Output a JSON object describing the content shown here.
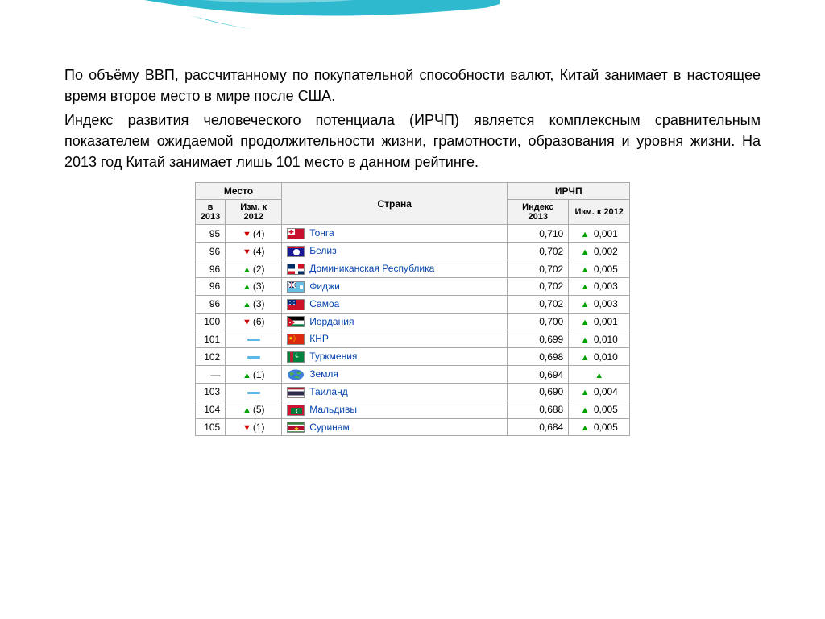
{
  "decoration": {
    "wave_color_outer": "#7bd4e0",
    "wave_color_mid": "#2fb9cf",
    "wave_color_inner": "#ffffff"
  },
  "paragraphs": {
    "p1": "По объёму ВВП, рассчитанному по покупательной способности валют, Китай занимает в настоящее время второе место в мире после США.",
    "p2": "Индекс развития человеческого потенциала (ИРЧП) является комплексным сравнительным показателем ожидаемой продолжительности жизни, грамотности, образования и уровня жизни. На 2013 год Китай занимает лишь 101 место в данном рейтинге."
  },
  "table": {
    "header_border": "#aaaaaa",
    "header_bg": "#f2f2f2",
    "link_color": "#0645ad",
    "up_color": "#00a000",
    "down_color": "#cc0000",
    "dash_color": "#5bb8e8",
    "group_place": "Место",
    "group_country": "Страна",
    "group_hdi": "ИРЧП",
    "col_rank": "в 2013",
    "col_rank_change": "Изм. к 2012",
    "col_index": "Индекс 2013",
    "col_index_change": "Изм. к 2012",
    "rows": [
      {
        "rank": "95",
        "rank_dir": "down",
        "rank_delta": "(4)",
        "flag": "tonga",
        "country": "Тонга",
        "index": "0,710",
        "idx_dir": "up",
        "idx_delta": "0,001"
      },
      {
        "rank": "96",
        "rank_dir": "down",
        "rank_delta": "(4)",
        "flag": "belize",
        "country": "Белиз",
        "index": "0,702",
        "idx_dir": "up",
        "idx_delta": "0,002"
      },
      {
        "rank": "96",
        "rank_dir": "up",
        "rank_delta": "(2)",
        "flag": "dominican",
        "country": "Доминиканская Республика",
        "index": "0,702",
        "idx_dir": "up",
        "idx_delta": "0,005"
      },
      {
        "rank": "96",
        "rank_dir": "up",
        "rank_delta": "(3)",
        "flag": "fiji",
        "country": "Фиджи",
        "index": "0,702",
        "idx_dir": "up",
        "idx_delta": "0,003"
      },
      {
        "rank": "96",
        "rank_dir": "up",
        "rank_delta": "(3)",
        "flag": "samoa",
        "country": "Самоа",
        "index": "0,702",
        "idx_dir": "up",
        "idx_delta": "0,003"
      },
      {
        "rank": "100",
        "rank_dir": "down",
        "rank_delta": "(6)",
        "flag": "jordan",
        "country": "Иордания",
        "index": "0,700",
        "idx_dir": "up",
        "idx_delta": "0,001"
      },
      {
        "rank": "101",
        "rank_dir": "dash",
        "rank_delta": "",
        "flag": "china",
        "country": "КНР",
        "index": "0,699",
        "idx_dir": "up",
        "idx_delta": "0,010"
      },
      {
        "rank": "102",
        "rank_dir": "dash",
        "rank_delta": "",
        "flag": "turkmenistan",
        "country": "Туркмения",
        "index": "0,698",
        "idx_dir": "up",
        "idx_delta": "0,010"
      },
      {
        "rank": "—",
        "rank_dir": "up",
        "rank_delta": "(1)",
        "flag": "earth",
        "country": "Земля",
        "index": "0,694",
        "idx_dir": "up",
        "idx_delta": ""
      },
      {
        "rank": "103",
        "rank_dir": "dash",
        "rank_delta": "",
        "flag": "thailand",
        "country": "Таиланд",
        "index": "0,690",
        "idx_dir": "up",
        "idx_delta": "0,004"
      },
      {
        "rank": "104",
        "rank_dir": "up",
        "rank_delta": "(5)",
        "flag": "maldives",
        "country": "Мальдивы",
        "index": "0,688",
        "idx_dir": "up",
        "idx_delta": "0,005"
      },
      {
        "rank": "105",
        "rank_dir": "down",
        "rank_delta": "(1)",
        "flag": "suriname",
        "country": "Суринам",
        "index": "0,684",
        "idx_dir": "up",
        "idx_delta": "0,005"
      }
    ]
  }
}
